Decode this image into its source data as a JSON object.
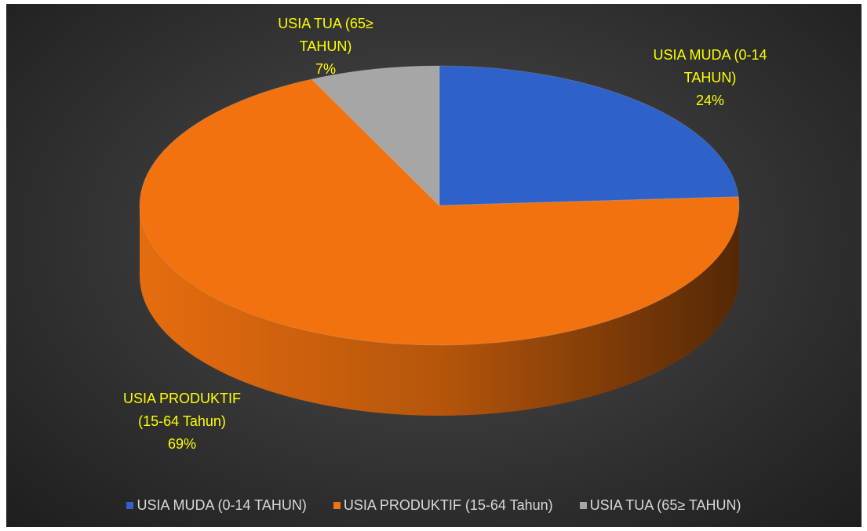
{
  "chart_data": {
    "type": "pie",
    "categories": [
      "USIA MUDA (0-14 TAHUN)",
      "USIA PRODUKTIF (15-64 Tahun)",
      "USIA TUA (65≥ TAHUN)"
    ],
    "values": [
      24,
      69,
      7
    ],
    "value_labels": [
      "24%",
      "69%",
      "7%"
    ],
    "colors": [
      "#2e62c8",
      "#f2720f",
      "#a6a6a6"
    ],
    "legend": "bottom"
  }
}
